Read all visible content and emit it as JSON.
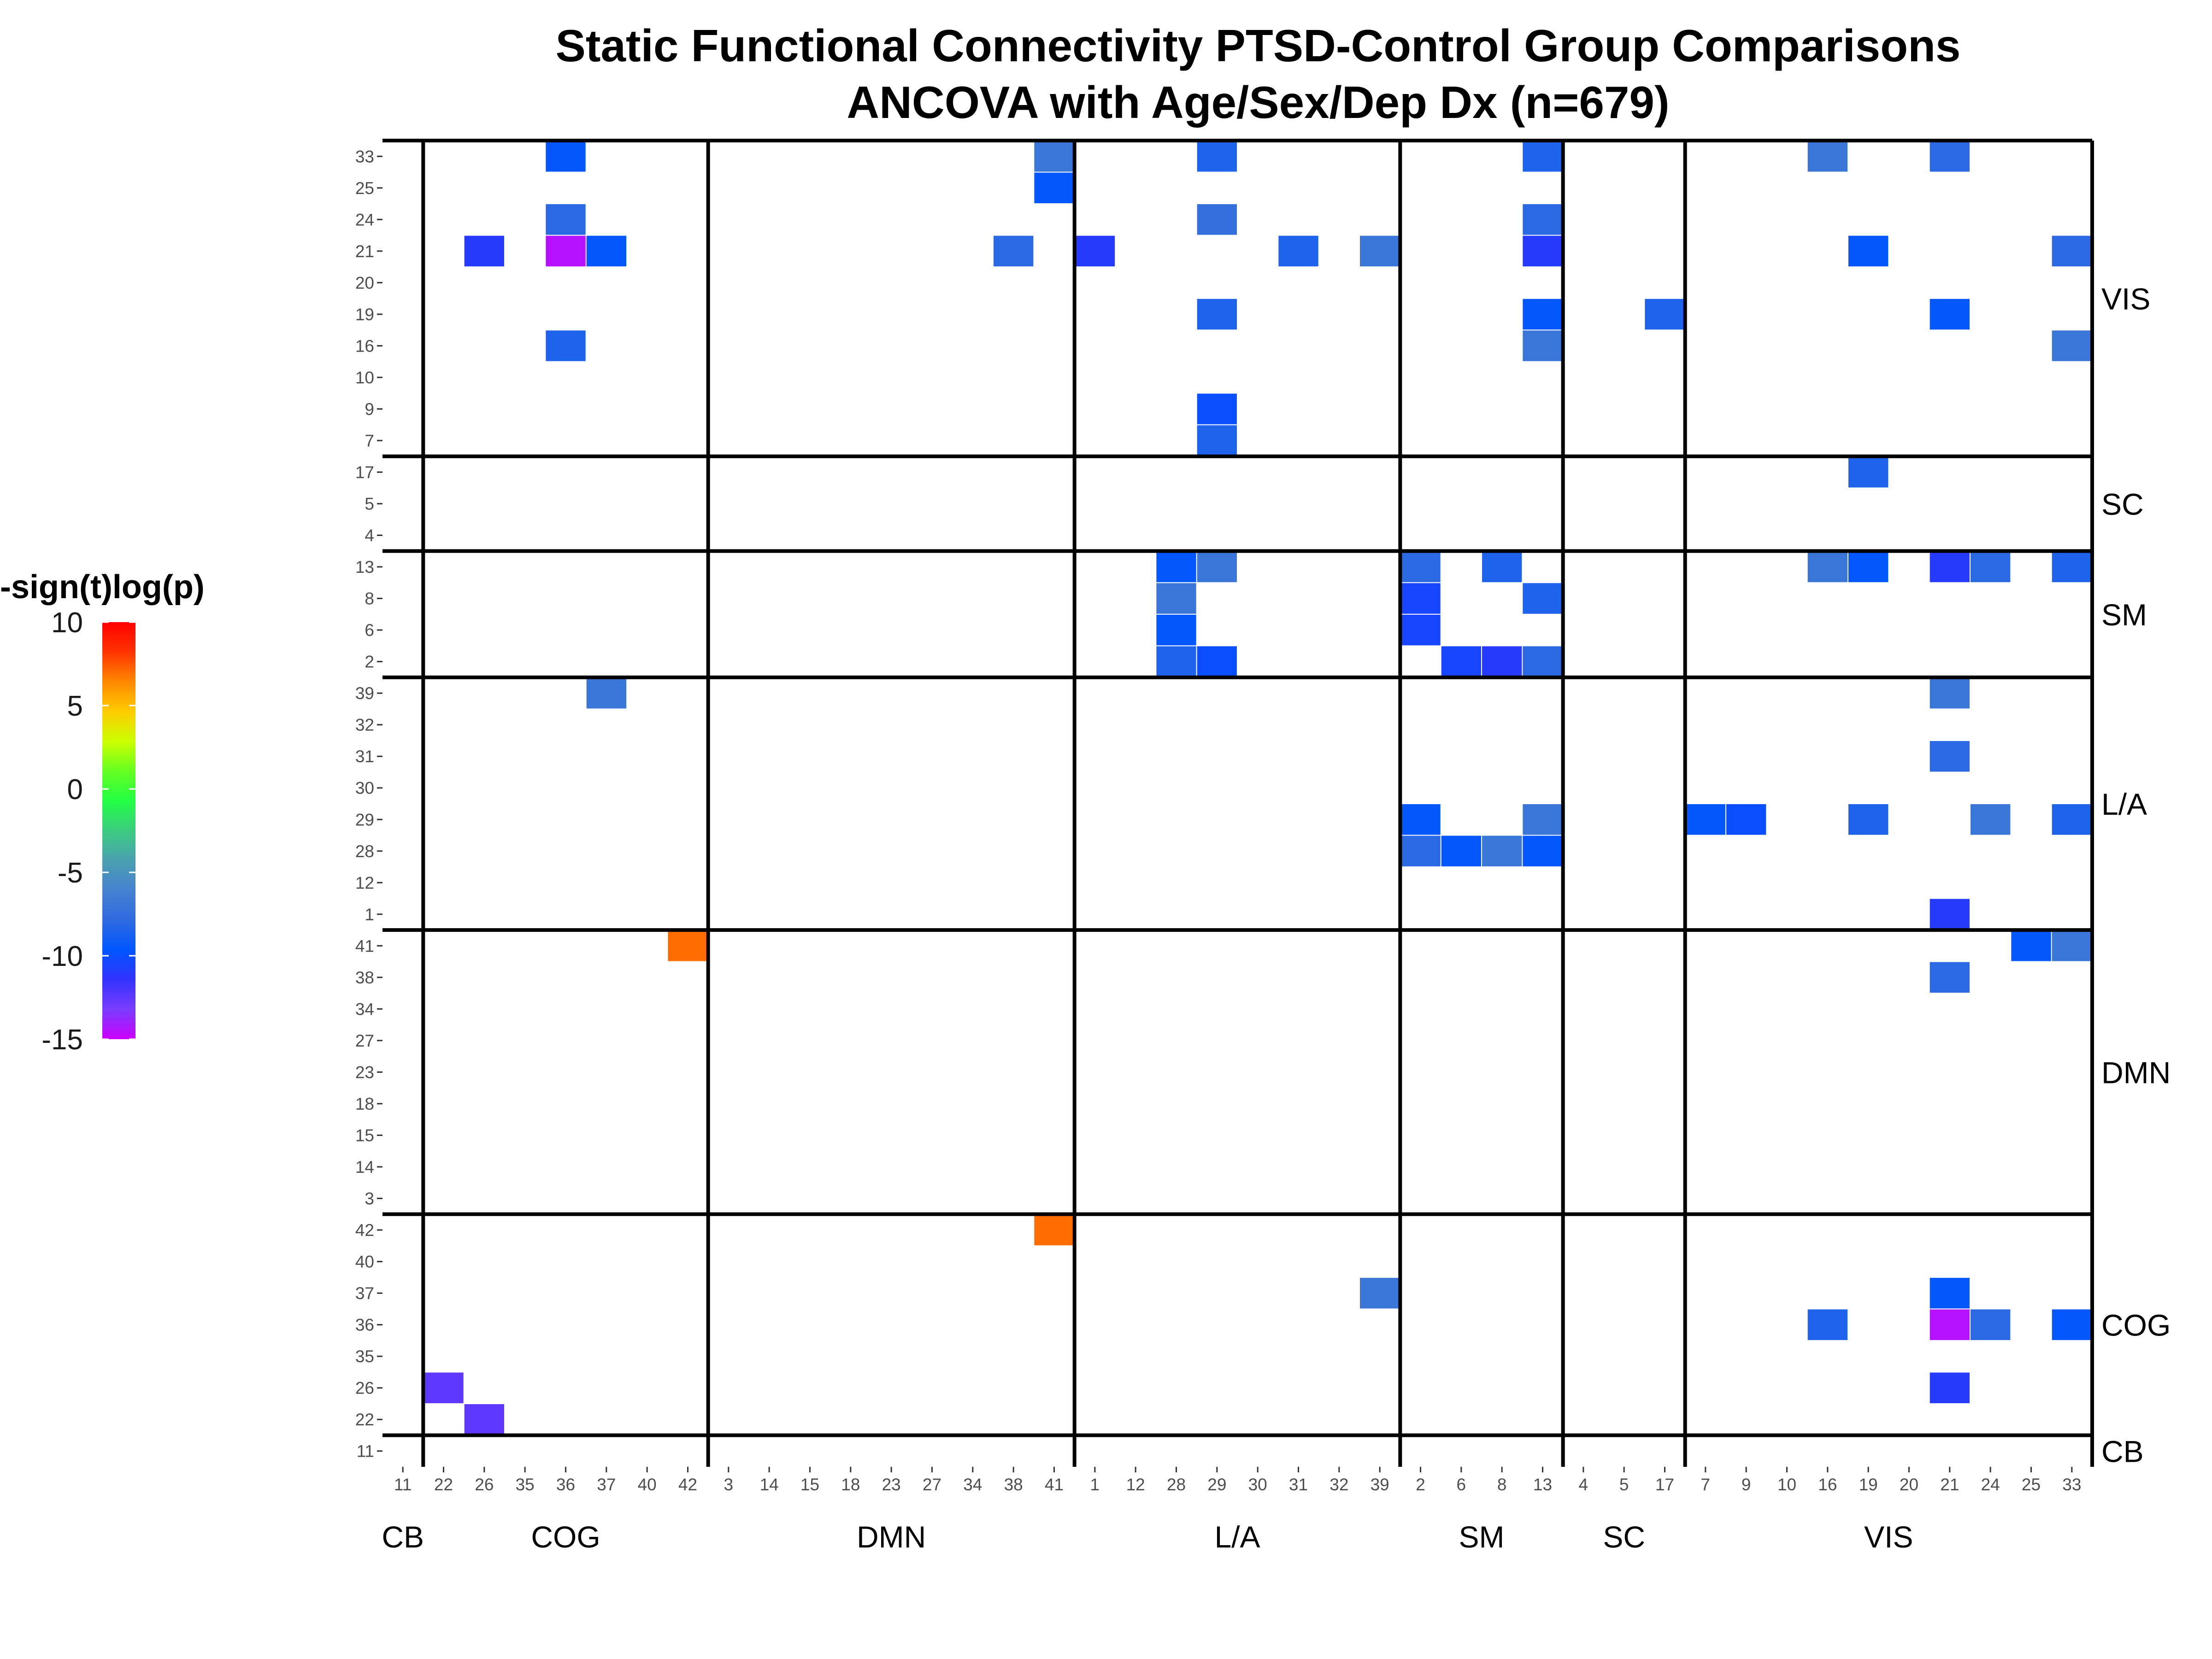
{
  "chart_data": {
    "type": "heatmap",
    "title": "Static Functional Connectivity PTSD-Control Group Comparisons",
    "subtitle": "ANCOVA with Age/Sex/Dep Dx (n=679)",
    "legend": {
      "title": "-sign(t)log(p)",
      "ticks": [
        10,
        5,
        0,
        -5,
        -10,
        -15
      ],
      "range": [
        -15,
        10
      ],
      "placement": "left",
      "colors": [
        "#cc00ff",
        "#7a3cff",
        "#3333ff",
        "#0055ff",
        "#2f6be0",
        "#4682d0",
        "#4aa0b0",
        "#3ccc80",
        "#22ff44",
        "#66ff22",
        "#ccff00",
        "#ffcc00",
        "#ff8800",
        "#ff3300",
        "#ff0000"
      ]
    },
    "x_groups": [
      {
        "name": "CB",
        "ticks": [
          "11"
        ]
      },
      {
        "name": "COG",
        "ticks": [
          "22",
          "26",
          "35",
          "36",
          "37",
          "40",
          "42"
        ]
      },
      {
        "name": "DMN",
        "ticks": [
          "3",
          "14",
          "15",
          "18",
          "23",
          "27",
          "34",
          "38",
          "41"
        ]
      },
      {
        "name": "L/A",
        "ticks": [
          "1",
          "12",
          "28",
          "29",
          "30",
          "31",
          "32",
          "39"
        ]
      },
      {
        "name": "SM",
        "ticks": [
          "2",
          "6",
          "8",
          "13"
        ]
      },
      {
        "name": "SC",
        "ticks": [
          "4",
          "5",
          "17"
        ]
      },
      {
        "name": "VIS",
        "ticks": [
          "7",
          "9",
          "10",
          "16",
          "19",
          "20",
          "21",
          "24",
          "25",
          "33"
        ]
      }
    ],
    "y_groups": [
      {
        "name": "CB",
        "ticks": [
          "11"
        ]
      },
      {
        "name": "COG",
        "ticks": [
          "22",
          "26",
          "35",
          "36",
          "37",
          "40",
          "42"
        ]
      },
      {
        "name": "DMN",
        "ticks": [
          "3",
          "14",
          "15",
          "18",
          "23",
          "27",
          "34",
          "38",
          "41"
        ]
      },
      {
        "name": "L/A",
        "ticks": [
          "1",
          "12",
          "28",
          "29",
          "30",
          "31",
          "32",
          "39"
        ]
      },
      {
        "name": "SM",
        "ticks": [
          "2",
          "6",
          "8",
          "13"
        ]
      },
      {
        "name": "SC",
        "ticks": [
          "4",
          "5",
          "17"
        ]
      },
      {
        "name": "VIS",
        "ticks": [
          "7",
          "9",
          "10",
          "16",
          "19",
          "20",
          "21",
          "24",
          "25",
          "33"
        ]
      }
    ],
    "cells": [
      {
        "x": "36",
        "y": "33",
        "value": -9.5
      },
      {
        "x": "41",
        "y": "33",
        "value": -7
      },
      {
        "x": "29",
        "y": "33",
        "value": -8.5
      },
      {
        "x": "13",
        "y": "33",
        "value": -8.5
      },
      {
        "x": "16",
        "y": "33",
        "value": -7
      },
      {
        "x": "21",
        "y": "33",
        "value": -8
      },
      {
        "x": "41",
        "y": "25",
        "value": -9.5
      },
      {
        "x": "36",
        "y": "24",
        "value": -8
      },
      {
        "x": "29",
        "y": "24",
        "value": -7.5
      },
      {
        "x": "13",
        "y": "24",
        "value": -8
      },
      {
        "x": "26",
        "y": "21",
        "value": -11
      },
      {
        "x": "36",
        "y": "21",
        "value": -14.5
      },
      {
        "x": "37",
        "y": "21",
        "value": -9.5
      },
      {
        "x": "38",
        "y": "21",
        "value": -8
      },
      {
        "x": "1",
        "y": "21",
        "value": -11
      },
      {
        "x": "31",
        "y": "21",
        "value": -8.5
      },
      {
        "x": "39",
        "y": "21",
        "value": -7
      },
      {
        "x": "13",
        "y": "21",
        "value": -11
      },
      {
        "x": "19",
        "y": "21",
        "value": -9.5
      },
      {
        "x": "33",
        "y": "21",
        "value": -8
      },
      {
        "x": "29",
        "y": "19",
        "value": -8.5
      },
      {
        "x": "13",
        "y": "19",
        "value": -9.5
      },
      {
        "x": "17",
        "y": "19",
        "value": -8.5
      },
      {
        "x": "21",
        "y": "19",
        "value": -9.5
      },
      {
        "x": "36",
        "y": "16",
        "value": -8.5
      },
      {
        "x": "13",
        "y": "16",
        "value": -7
      },
      {
        "x": "33",
        "y": "16",
        "value": -7
      },
      {
        "x": "29",
        "y": "9",
        "value": -10
      },
      {
        "x": "29",
        "y": "7",
        "value": -8.5
      },
      {
        "x": "19",
        "y": "17",
        "value": -8.5
      },
      {
        "x": "28",
        "y": "13",
        "value": -9.5
      },
      {
        "x": "29",
        "y": "13",
        "value": -7
      },
      {
        "x": "2",
        "y": "13",
        "value": -8
      },
      {
        "x": "8",
        "y": "13",
        "value": -8.5
      },
      {
        "x": "16",
        "y": "13",
        "value": -7
      },
      {
        "x": "19",
        "y": "13",
        "value": -9.5
      },
      {
        "x": "21",
        "y": "13",
        "value": -11
      },
      {
        "x": "24",
        "y": "13",
        "value": -8
      },
      {
        "x": "33",
        "y": "13",
        "value": -8.5
      },
      {
        "x": "28",
        "y": "8",
        "value": -7
      },
      {
        "x": "2",
        "y": "8",
        "value": -10.5
      },
      {
        "x": "13",
        "y": "8",
        "value": -8.5
      },
      {
        "x": "28",
        "y": "6",
        "value": -9.5
      },
      {
        "x": "2",
        "y": "6",
        "value": -10.5
      },
      {
        "x": "28",
        "y": "2",
        "value": -8.5
      },
      {
        "x": "29",
        "y": "2",
        "value": -10
      },
      {
        "x": "6",
        "y": "2",
        "value": -10.5
      },
      {
        "x": "8",
        "y": "2",
        "value": -11
      },
      {
        "x": "13",
        "y": "2",
        "value": -8
      },
      {
        "x": "37",
        "y": "39",
        "value": -7
      },
      {
        "x": "21",
        "y": "39",
        "value": -7
      },
      {
        "x": "21",
        "y": "31",
        "value": -8
      },
      {
        "x": "2",
        "y": "29",
        "value": -9.5
      },
      {
        "x": "13",
        "y": "29",
        "value": -7
      },
      {
        "x": "7",
        "y": "29",
        "value": -9.5
      },
      {
        "x": "9",
        "y": "29",
        "value": -10
      },
      {
        "x": "19",
        "y": "29",
        "value": -8.5
      },
      {
        "x": "24",
        "y": "29",
        "value": -7
      },
      {
        "x": "33",
        "y": "29",
        "value": -8.5
      },
      {
        "x": "2",
        "y": "28",
        "value": -8
      },
      {
        "x": "6",
        "y": "28",
        "value": -9.5
      },
      {
        "x": "8",
        "y": "28",
        "value": -7
      },
      {
        "x": "13",
        "y": "28",
        "value": -9.5
      },
      {
        "x": "21",
        "y": "1",
        "value": -11
      },
      {
        "x": "42",
        "y": "41",
        "value": 7
      },
      {
        "x": "25",
        "y": "41",
        "value": -9.5
      },
      {
        "x": "33",
        "y": "41",
        "value": -7
      },
      {
        "x": "21",
        "y": "38",
        "value": -8
      },
      {
        "x": "41",
        "y": "42",
        "value": 7
      },
      {
        "x": "39",
        "y": "37",
        "value": -7
      },
      {
        "x": "21",
        "y": "37",
        "value": -9.5
      },
      {
        "x": "16",
        "y": "36",
        "value": -8.5
      },
      {
        "x": "21",
        "y": "36",
        "value": -14.5
      },
      {
        "x": "24",
        "y": "36",
        "value": -8
      },
      {
        "x": "33",
        "y": "36",
        "value": -9.5
      },
      {
        "x": "22",
        "y": "26",
        "value": -12.5
      },
      {
        "x": "21",
        "y": "26",
        "value": -11
      },
      {
        "x": "26",
        "y": "22",
        "value": -12.5
      }
    ]
  }
}
